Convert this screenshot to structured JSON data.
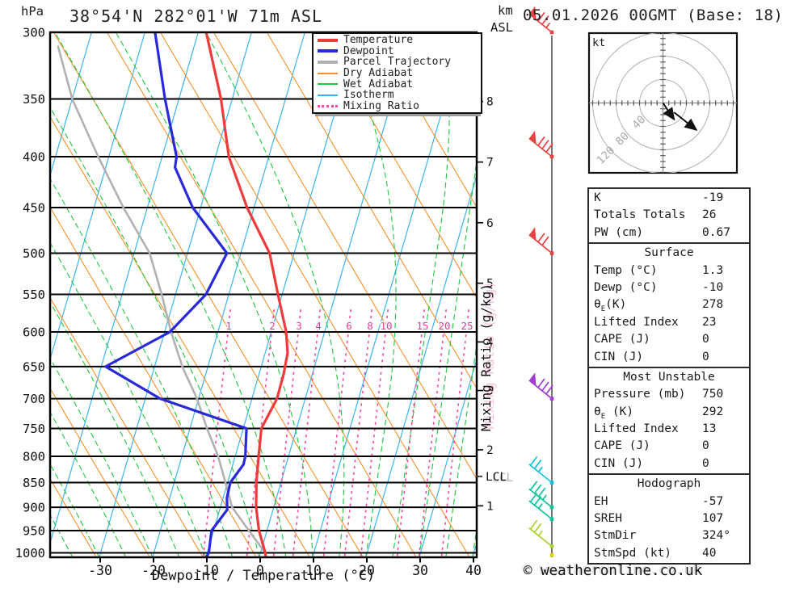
{
  "header": {
    "pressure_unit": "hPa",
    "km_label": "km",
    "asl_label": "ASL",
    "station": "38°54'N 282°01'W 71m ASL",
    "datetime": "05.01.2026 00GMT (Base: 18)"
  },
  "chart_data": {
    "type": "skewt-logp",
    "xlabel": "Dewpoint / Temperature (°C)",
    "pressure_ticks": [
      300,
      350,
      400,
      450,
      500,
      550,
      600,
      650,
      700,
      750,
      800,
      850,
      900,
      950,
      1000
    ],
    "temp_ticks": [
      -30,
      -20,
      -10,
      0,
      10,
      20,
      30,
      40
    ],
    "temp_range_shown": [
      -39,
      40
    ],
    "km_ticks": [
      {
        "km": 1,
        "p": 897
      },
      {
        "km": 2,
        "p": 788
      },
      {
        "km": 3,
        "p": 687
      },
      {
        "km": 4,
        "p": 614
      },
      {
        "km": 5,
        "p": 536
      },
      {
        "km": 6,
        "p": 466
      },
      {
        "km": 7,
        "p": 405
      },
      {
        "km": 8,
        "p": 352
      }
    ],
    "mixing_ratio_label": "Mixing Ratio (g/kg)",
    "mixing_ratio_values": [
      1,
      2,
      3,
      4,
      6,
      8,
      10,
      15,
      20,
      25
    ],
    "lcl": {
      "label": "LCL",
      "pressure": 838
    },
    "temperature_curve": [
      [
        300,
        -38.5
      ],
      [
        350,
        -32.1
      ],
      [
        400,
        -27.5
      ],
      [
        450,
        -21.3
      ],
      [
        500,
        -14.6
      ],
      [
        550,
        -10.8
      ],
      [
        600,
        -7.2
      ],
      [
        630,
        -5.8
      ],
      [
        660,
        -5.4
      ],
      [
        700,
        -5.3
      ],
      [
        750,
        -6.6
      ],
      [
        800,
        -5.6
      ],
      [
        850,
        -4.6
      ],
      [
        900,
        -3.3
      ],
      [
        950,
        -1.5
      ],
      [
        1000,
        0.9
      ],
      [
        1013,
        1.3
      ]
    ],
    "dewpoint_curve": [
      [
        300,
        -48.1
      ],
      [
        350,
        -42.6
      ],
      [
        400,
        -37.3
      ],
      [
        410,
        -37.0
      ],
      [
        450,
        -31.5
      ],
      [
        500,
        -22.6
      ],
      [
        550,
        -24.3
      ],
      [
        600,
        -29.0
      ],
      [
        650,
        -39.2
      ],
      [
        700,
        -27.2
      ],
      [
        750,
        -9.4
      ],
      [
        800,
        -8.1
      ],
      [
        815,
        -8.0
      ],
      [
        850,
        -9.5
      ],
      [
        880,
        -9.3
      ],
      [
        905,
        -8.6
      ],
      [
        950,
        -10.4
      ],
      [
        1000,
        -9.7
      ],
      [
        1013,
        -10.0
      ]
    ],
    "parcel_curve": [
      [
        310,
        -65.5
      ],
      [
        350,
        -60.0
      ],
      [
        400,
        -52.0
      ],
      [
        450,
        -44.5
      ],
      [
        500,
        -37.1
      ],
      [
        550,
        -32.6
      ],
      [
        600,
        -28.8
      ],
      [
        650,
        -24.8
      ],
      [
        700,
        -20.3
      ],
      [
        750,
        -16.8
      ],
      [
        800,
        -13.2
      ],
      [
        850,
        -10.4
      ],
      [
        900,
        -7.8
      ],
      [
        950,
        -3.4
      ],
      [
        1000,
        0.9
      ],
      [
        1013,
        1.3
      ]
    ],
    "wind_barbs": [
      {
        "p": 300,
        "color": "#ea4141",
        "flag": 1,
        "full": 2,
        "half": 1
      },
      {
        "p": 400,
        "color": "#ea4141",
        "flag": 1,
        "full": 3,
        "half": 0
      },
      {
        "p": 500,
        "color": "#ea4141",
        "flag": 1,
        "full": 2,
        "half": 0
      },
      {
        "p": 700,
        "color": "#a23bd6",
        "flag": 1,
        "full": 3,
        "half": 0
      },
      {
        "p": 850,
        "color": "#10c2dc",
        "flag": 0,
        "full": 2,
        "half": 1
      },
      {
        "p": 900,
        "color": "#0cc49a",
        "flag": 0,
        "full": 3,
        "half": 1
      },
      {
        "p": 925,
        "color": "#0cc49a",
        "flag": 0,
        "full": 2,
        "half": 1
      },
      {
        "p": 985,
        "color": "#aad22e",
        "flag": 0,
        "full": 2,
        "half": 1
      }
    ],
    "surface_marker": {
      "p": 1005,
      "color": "#d6d200"
    },
    "hodograph": {
      "unit": "kt",
      "rings": [
        40,
        80,
        120
      ],
      "trace1_kt": [
        [
          0,
          0
        ],
        [
          8,
          -12
        ],
        [
          19,
          -28
        ]
      ],
      "trace2_kt": [
        [
          19,
          -16
        ],
        [
          57,
          -46
        ]
      ]
    }
  },
  "legend": {
    "items": [
      {
        "label": "Temperature",
        "color": "#ee3b3b",
        "style": "thick"
      },
      {
        "label": "Dewpoint",
        "color": "#2929d9",
        "style": "thick"
      },
      {
        "label": "Parcel Trajectory",
        "color": "#b1b1b1",
        "style": "thick"
      },
      {
        "label": "Dry Adiabat",
        "color": "#f5902c",
        "style": "thin"
      },
      {
        "label": "Wet Adiabat",
        "color": "#1dc93c",
        "style": "thin"
      },
      {
        "label": "Isotherm",
        "color": "#3ab4f2",
        "style": "thin"
      },
      {
        "label": "Mixing Ratio",
        "color": "#f74da8",
        "style": "dotted"
      }
    ]
  },
  "indices": {
    "sections": [
      {
        "title": "",
        "rows": [
          [
            "K",
            "-19"
          ],
          [
            "Totals Totals",
            "26"
          ],
          [
            "PW (cm)",
            "0.67"
          ]
        ]
      },
      {
        "title": "Surface",
        "rows": [
          [
            "Temp (°C)",
            "1.3"
          ],
          [
            "Dewp (°C)",
            "-10"
          ],
          [
            "θE(K)",
            "278"
          ],
          [
            "Lifted Index",
            "23"
          ],
          [
            "CAPE (J)",
            "0"
          ],
          [
            "CIN (J)",
            "0"
          ]
        ]
      },
      {
        "title": "Most Unstable",
        "rows": [
          [
            "Pressure (mb)",
            "750"
          ],
          [
            "θE (K)",
            "292"
          ],
          [
            "Lifted Index",
            "13"
          ],
          [
            "CAPE (J)",
            "0"
          ],
          [
            "CIN (J)",
            "0"
          ]
        ]
      },
      {
        "title": "Hodograph",
        "rows": [
          [
            "EH",
            "-57"
          ],
          [
            "SREH",
            "107"
          ],
          [
            "StmDir",
            "324°"
          ],
          [
            "StmSpd (kt)",
            "40"
          ]
        ]
      }
    ]
  },
  "footer": {
    "copyright": "© weatheronline.co.uk"
  }
}
